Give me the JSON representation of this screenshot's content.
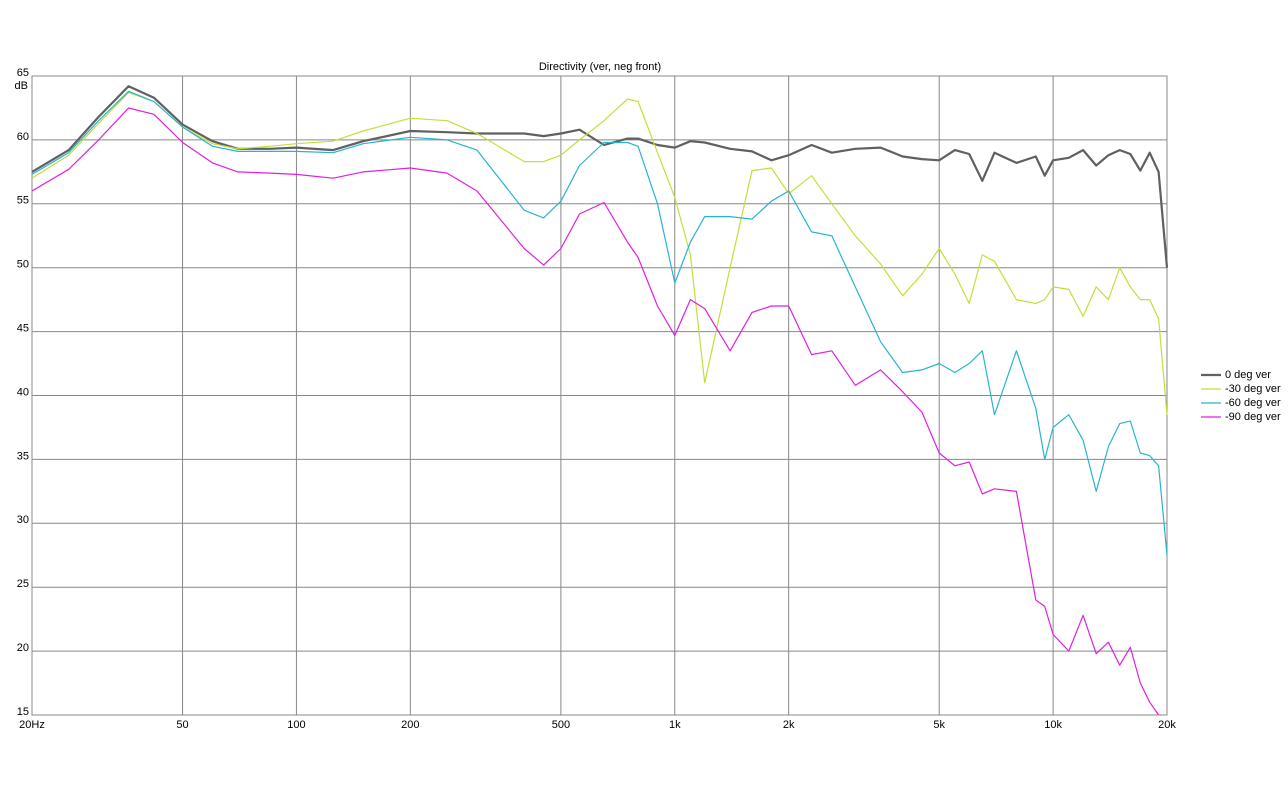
{
  "chart_data": {
    "type": "line",
    "title": "Directivity (ver, neg front)",
    "y_label": "dB",
    "log_x": true,
    "grid": true,
    "legend_position": "right",
    "xlim": [
      20,
      20000
    ],
    "ylim": [
      15,
      65
    ],
    "xticks": [
      {
        "value": 20,
        "label": "20Hz"
      },
      50,
      100,
      200,
      500,
      {
        "value": 1000,
        "label": "1k"
      },
      {
        "value": 2000,
        "label": "2k"
      },
      {
        "value": 5000,
        "label": "5k"
      },
      {
        "value": 10000,
        "label": "10k"
      },
      {
        "value": 20000,
        "label": "20k"
      }
    ],
    "yticks": [
      15,
      20,
      25,
      30,
      35,
      40,
      45,
      50,
      55,
      60,
      65
    ],
    "x": [
      20,
      25,
      30,
      36,
      42,
      50,
      60,
      70,
      85,
      100,
      125,
      150,
      200,
      250,
      300,
      400,
      450,
      500,
      560,
      650,
      750,
      800,
      900,
      1000,
      1100,
      1200,
      1400,
      1600,
      1800,
      2000,
      2300,
      2600,
      3000,
      3500,
      4000,
      4500,
      5000,
      5500,
      6000,
      6500,
      7000,
      8000,
      9000,
      9500,
      10000,
      11000,
      12000,
      13000,
      14000,
      15000,
      16000,
      17000,
      18000,
      19000,
      20000
    ],
    "series": [
      {
        "name": "0 deg ver",
        "color": "#606060",
        "width": 2.2,
        "values": [
          57.5,
          59.2,
          61.8,
          64.2,
          63.3,
          61.2,
          59.9,
          59.3,
          59.3,
          59.4,
          59.2,
          59.9,
          60.7,
          60.6,
          60.5,
          60.5,
          60.3,
          60.5,
          60.8,
          59.6,
          60.1,
          60.1,
          59.6,
          59.4,
          59.9,
          59.8,
          59.3,
          59.1,
          58.4,
          58.8,
          59.6,
          59.0,
          59.3,
          59.4,
          58.7,
          58.5,
          58.4,
          59.2,
          58.9,
          56.8,
          59.0,
          58.2,
          58.7,
          57.2,
          58.4,
          58.6,
          59.2,
          58.0,
          58.8,
          59.2,
          58.9,
          57.6,
          59.0,
          57.5,
          50
        ]
      },
      {
        "name": "-30 deg ver",
        "color": "#c6dd3a",
        "width": 1.2,
        "values": [
          57,
          58.8,
          61.3,
          63.7,
          63,
          61,
          59.7,
          59.3,
          59.5,
          59.7,
          59.9,
          60.7,
          61.7,
          61.5,
          60.5,
          58.3,
          58.3,
          58.8,
          60,
          61.5,
          63.2,
          63,
          59,
          55.5,
          51,
          41,
          50,
          57.6,
          57.8,
          55.8,
          57.2,
          55,
          52.5,
          50.3,
          47.8,
          49.5,
          51.5,
          49.5,
          47.2,
          51,
          50.5,
          47.5,
          47.2,
          47.5,
          48.5,
          48.3,
          46.2,
          48.5,
          47.5,
          50,
          48.5,
          47.5,
          47.5,
          46,
          38.5
        ]
      },
      {
        "name": "-60 deg ver",
        "color": "#27b4cf",
        "width": 1.2,
        "values": [
          57.3,
          59,
          61.5,
          63.8,
          63,
          61,
          59.5,
          59.1,
          59.1,
          59.1,
          59,
          59.7,
          60.2,
          60,
          59.2,
          54.5,
          53.9,
          55.2,
          58,
          59.8,
          59.8,
          59.5,
          55,
          48.8,
          52,
          54,
          54,
          53.8,
          55.2,
          56,
          52.8,
          52.5,
          48.5,
          44.2,
          41.8,
          42,
          42.5,
          41.8,
          42.5,
          43.5,
          38.5,
          43.5,
          39,
          35,
          37.5,
          38.5,
          36.5,
          32.5,
          36,
          37.8,
          38,
          35.5,
          35.3,
          34.5,
          27.5
        ]
      },
      {
        "name": "-90 deg ver",
        "color": "#e01fe0",
        "width": 1.2,
        "values": [
          56,
          57.7,
          60,
          62.5,
          62,
          59.8,
          58.2,
          57.5,
          57.4,
          57.3,
          57,
          57.5,
          57.8,
          57.4,
          56,
          51.5,
          50.2,
          51.5,
          54.2,
          55.1,
          52,
          50.8,
          47,
          44.7,
          47.5,
          46.8,
          43.5,
          46.5,
          47,
          47,
          43.2,
          43.5,
          40.8,
          42,
          40.3,
          38.7,
          35.5,
          34.5,
          34.8,
          32.3,
          32.7,
          32.5,
          24,
          23.5,
          21.3,
          20,
          22.8,
          19.8,
          20.7,
          18.9,
          20.3,
          17.5,
          16,
          15,
          null
        ]
      }
    ]
  }
}
